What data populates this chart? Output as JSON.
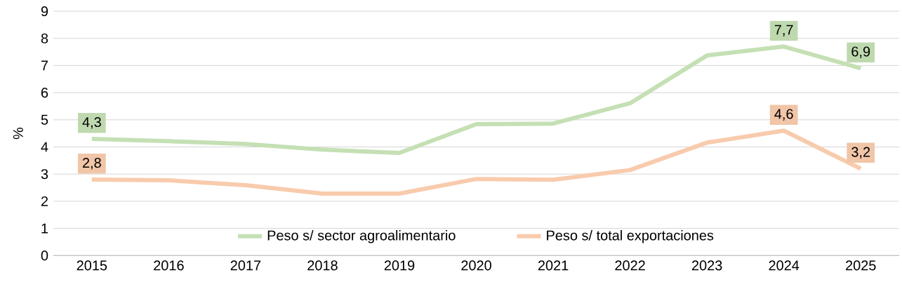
{
  "chart_data": {
    "type": "line",
    "ylabel": "%",
    "categories": [
      "2015",
      "2016",
      "2017",
      "2018",
      "2019",
      "2020",
      "2021",
      "2022",
      "2023",
      "2024",
      "2025"
    ],
    "series": [
      {
        "name": "Peso s/ sector agroalimentario",
        "color": "#c5e0b4",
        "values": [
          4.3,
          4.21,
          4.11,
          3.9,
          3.78,
          4.84,
          4.86,
          5.61,
          7.37,
          7.7,
          6.9
        ],
        "value_labels": [
          "4,3",
          null,
          null,
          null,
          null,
          null,
          null,
          null,
          null,
          "7,7",
          "6,9"
        ]
      },
      {
        "name": "Peso s/ total exportaciones",
        "color": "#f8cbad",
        "values": [
          2.8,
          2.77,
          2.59,
          2.28,
          2.28,
          2.82,
          2.79,
          3.15,
          4.16,
          4.6,
          3.2
        ],
        "value_labels": [
          "2,8",
          null,
          null,
          null,
          null,
          null,
          null,
          null,
          null,
          "4,6",
          "3,2"
        ]
      }
    ],
    "ylim": [
      0,
      9
    ],
    "yticks": [
      0,
      1,
      2,
      3,
      4,
      5,
      6,
      7,
      8,
      9
    ],
    "grid": "y",
    "legend": "bottom",
    "marker": "none",
    "line_style": "solid"
  }
}
